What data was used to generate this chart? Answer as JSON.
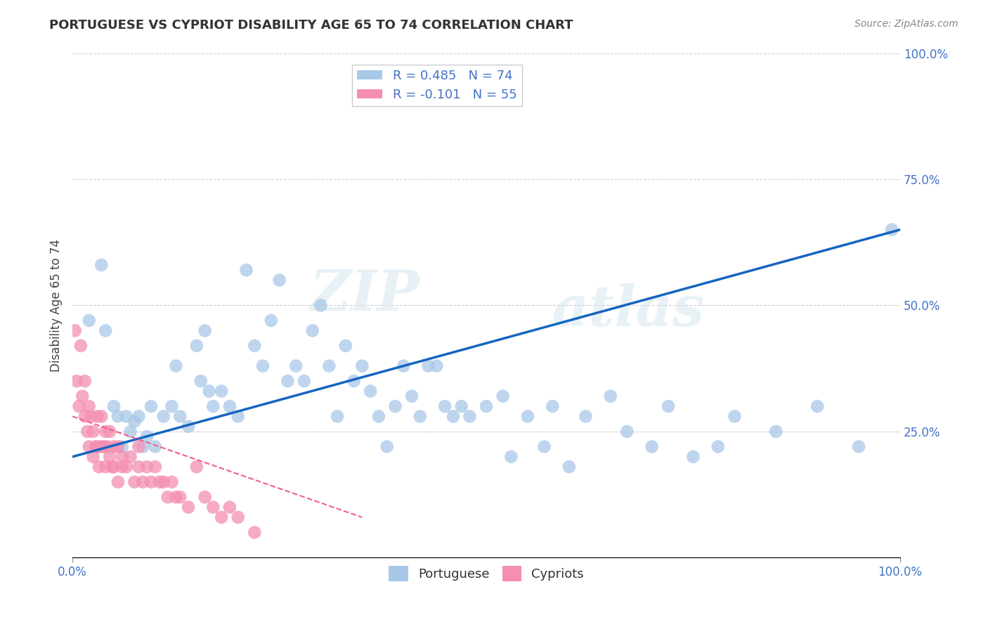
{
  "title": "PORTUGUESE VS CYPRIOT DISABILITY AGE 65 TO 74 CORRELATION CHART",
  "source": "Source: ZipAtlas.com",
  "ylabel": "Disability Age 65 to 74",
  "xlim": [
    0,
    100
  ],
  "ylim": [
    0,
    100
  ],
  "xtick_labels": [
    "0.0%",
    "100.0%"
  ],
  "ytick_right_labels": [
    "25.0%",
    "50.0%",
    "75.0%",
    "100.0%"
  ],
  "ytick_right_values": [
    25,
    50,
    75,
    100
  ],
  "portuguese_color": "#A8C8E8",
  "cypriot_color": "#F48FB1",
  "trend_portuguese_color": "#1565C0",
  "trend_cypriot_color": "#F06090",
  "watermark_zip": "ZIP",
  "watermark_atlas": "atlas",
  "legend_label_portuguese": "R = 0.485   N = 74",
  "legend_label_cypriot": "R = -0.101   N = 55",
  "portuguese_x": [
    2.0,
    3.5,
    4.0,
    5.0,
    5.5,
    6.0,
    6.5,
    7.0,
    7.5,
    8.0,
    8.5,
    9.0,
    9.5,
    10.0,
    11.0,
    12.0,
    12.5,
    13.0,
    14.0,
    15.0,
    15.5,
    16.0,
    16.5,
    17.0,
    18.0,
    19.0,
    20.0,
    21.0,
    22.0,
    23.0,
    24.0,
    25.0,
    26.0,
    27.0,
    28.0,
    29.0,
    30.0,
    31.0,
    32.0,
    33.0,
    34.0,
    35.0,
    36.0,
    37.0,
    38.0,
    39.0,
    40.0,
    41.0,
    42.0,
    43.0,
    44.0,
    45.0,
    46.0,
    47.0,
    48.0,
    50.0,
    52.0,
    53.0,
    55.0,
    57.0,
    58.0,
    60.0,
    62.0,
    65.0,
    67.0,
    70.0,
    72.0,
    75.0,
    78.0,
    80.0,
    85.0,
    90.0,
    95.0,
    99.0
  ],
  "portuguese_y": [
    47.0,
    58.0,
    45.0,
    30.0,
    28.0,
    22.0,
    28.0,
    25.0,
    27.0,
    28.0,
    22.0,
    24.0,
    30.0,
    22.0,
    28.0,
    30.0,
    38.0,
    28.0,
    26.0,
    42.0,
    35.0,
    45.0,
    33.0,
    30.0,
    33.0,
    30.0,
    28.0,
    57.0,
    42.0,
    38.0,
    47.0,
    55.0,
    35.0,
    38.0,
    35.0,
    45.0,
    50.0,
    38.0,
    28.0,
    42.0,
    35.0,
    38.0,
    33.0,
    28.0,
    22.0,
    30.0,
    38.0,
    32.0,
    28.0,
    38.0,
    38.0,
    30.0,
    28.0,
    30.0,
    28.0,
    30.0,
    32.0,
    20.0,
    28.0,
    22.0,
    30.0,
    18.0,
    28.0,
    32.0,
    25.0,
    22.0,
    30.0,
    20.0,
    22.0,
    28.0,
    25.0,
    30.0,
    22.0,
    65.0
  ],
  "cypriot_x": [
    0.3,
    0.5,
    0.8,
    1.0,
    1.2,
    1.5,
    1.5,
    1.8,
    2.0,
    2.0,
    2.2,
    2.5,
    2.5,
    2.8,
    3.0,
    3.0,
    3.2,
    3.5,
    3.5,
    3.8,
    4.0,
    4.0,
    4.2,
    4.5,
    4.5,
    4.8,
    5.0,
    5.0,
    5.5,
    5.5,
    6.0,
    6.0,
    6.5,
    7.0,
    7.5,
    8.0,
    8.0,
    8.5,
    9.0,
    9.5,
    10.0,
    10.5,
    11.0,
    11.5,
    12.0,
    12.5,
    13.0,
    14.0,
    15.0,
    16.0,
    17.0,
    18.0,
    19.0,
    20.0,
    22.0
  ],
  "cypriot_y": [
    45.0,
    35.0,
    30.0,
    42.0,
    32.0,
    28.0,
    35.0,
    25.0,
    30.0,
    22.0,
    28.0,
    25.0,
    20.0,
    22.0,
    28.0,
    22.0,
    18.0,
    22.0,
    28.0,
    22.0,
    25.0,
    18.0,
    22.0,
    20.0,
    25.0,
    18.0,
    22.0,
    18.0,
    22.0,
    15.0,
    20.0,
    18.0,
    18.0,
    20.0,
    15.0,
    18.0,
    22.0,
    15.0,
    18.0,
    15.0,
    18.0,
    15.0,
    15.0,
    12.0,
    15.0,
    12.0,
    12.0,
    10.0,
    18.0,
    12.0,
    10.0,
    8.0,
    10.0,
    8.0,
    5.0
  ],
  "trend_port_x0": 0,
  "trend_port_y0": 20.0,
  "trend_port_x1": 100,
  "trend_port_y1": 65.0,
  "trend_cyp_x0": 0,
  "trend_cyp_y0": 28.0,
  "trend_cyp_x1": 35,
  "trend_cyp_y1": 8.0
}
